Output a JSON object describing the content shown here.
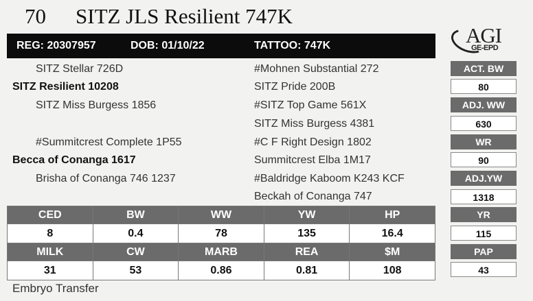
{
  "header": {
    "lot": "70",
    "name": "SITZ JLS Resilient 747K"
  },
  "logo": {
    "main": "AGI",
    "sub": "GE-EPD"
  },
  "regbar": {
    "reg": "REG: 20307957",
    "dob": "DOB: 01/10/22",
    "tattoo": "TATTOO: 747K"
  },
  "pedigree": {
    "sire_sire": "SITZ Stellar 726D",
    "sire": "SITZ Resilient 10208",
    "sire_dam": "SITZ Miss Burgess 1856",
    "dam_sire": "#Summitcrest Complete 1P55",
    "dam": "Becca of Conanga 1617",
    "dam_dam": "Brisha of Conanga 746 1237",
    "right": [
      "#Mohnen Substantial 272",
      "SITZ Pride 200B",
      "#SITZ Top Game 561X",
      "SITZ Miss Burgess 4381",
      "#C F Right Design 1802",
      "Summitcrest Elba 1M17",
      "#Baldridge Kaboom K243 KCF",
      "Beckah of Conanga 747"
    ]
  },
  "side": [
    {
      "label": "ACT. BW",
      "value": "80"
    },
    {
      "label": "ADJ. WW",
      "value": "630"
    },
    {
      "label": "WR",
      "value": "90"
    },
    {
      "label": "ADJ.YW",
      "value": "1318"
    },
    {
      "label": "YR",
      "value": "115"
    },
    {
      "label": "PAP",
      "value": "43"
    }
  ],
  "epds": {
    "row1_labels": [
      "CED",
      "BW",
      "WW",
      "YW",
      "HP"
    ],
    "row1_values": [
      "8",
      "0.4",
      "78",
      "135",
      "16.4"
    ],
    "row2_labels": [
      "MILK",
      "CW",
      "MARB",
      "REA",
      "$M"
    ],
    "row2_values": [
      "31",
      "53",
      "0.86",
      "0.81",
      "108"
    ]
  },
  "footer": {
    "note": "Embryo Transfer"
  }
}
